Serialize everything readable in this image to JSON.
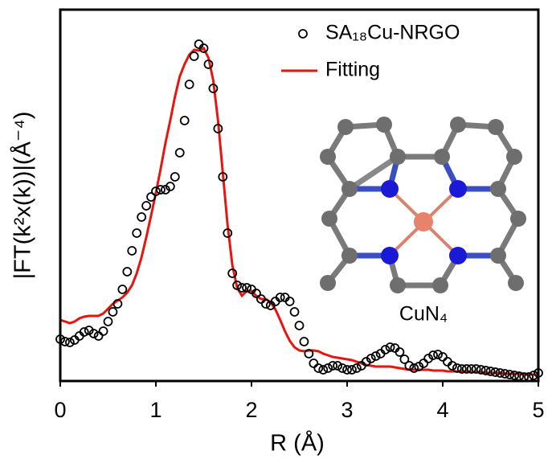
{
  "chart_data": {
    "type": "line",
    "xlabel": "R (Å)",
    "ylabel": "|FT(k²x(k))|(Å⁻⁴)",
    "annotation": "CuN₄",
    "xlim": [
      0,
      5
    ],
    "xticks": [
      0,
      1,
      2,
      3,
      4,
      5
    ],
    "ylim": [
      0,
      462
    ],
    "legend": "upper right",
    "x": [
      0,
      0.05,
      0.1,
      0.15,
      0.2,
      0.25,
      0.3,
      0.35,
      0.4,
      0.45,
      0.5,
      0.55,
      0.6,
      0.65,
      0.7,
      0.75,
      0.8,
      0.85,
      0.9,
      0.95,
      1,
      1.05,
      1.1,
      1.15,
      1.2,
      1.25,
      1.3,
      1.35,
      1.4,
      1.45,
      1.5,
      1.55,
      1.6,
      1.65,
      1.7,
      1.75,
      1.8,
      1.85,
      1.9,
      1.95,
      2,
      2.05,
      2.1,
      2.15,
      2.2,
      2.25,
      2.3,
      2.35,
      2.4,
      2.45,
      2.5,
      2.55,
      2.6,
      2.65,
      2.7,
      2.75,
      2.8,
      2.85,
      2.9,
      2.95,
      3,
      3.05,
      3.1,
      3.15,
      3.2,
      3.25,
      3.3,
      3.35,
      3.4,
      3.45,
      3.5,
      3.55,
      3.6,
      3.65,
      3.7,
      3.75,
      3.8,
      3.85,
      3.9,
      3.95,
      4,
      4.05,
      4.1,
      4.15,
      4.2,
      4.25,
      4.3,
      4.35,
      4.4,
      4.45,
      4.5,
      4.55,
      4.6,
      4.65,
      4.7,
      4.75,
      4.8,
      4.85,
      4.9,
      4.95,
      5
    ],
    "series": [
      {
        "name": "SA₁₈Cu-NRGO",
        "color": "#000000",
        "mode": "markers",
        "values": [
          52,
          49,
          48,
          51,
          56,
          61,
          63,
          59,
          56,
          62,
          74,
          86,
          96,
          114,
          136,
          162,
          184,
          204,
          218,
          229,
          236,
          238,
          238,
          242,
          254,
          284,
          324,
          369,
          404,
          419,
          414,
          394,
          364,
          314,
          254,
          184,
          134,
          119,
          116,
          116,
          114,
          109,
          102,
          96,
          94,
          99,
          104,
          104,
          99,
          86,
          69,
          49,
          34,
          22,
          16,
          14,
          16,
          19,
          19,
          16,
          14,
          14,
          16,
          19,
          24,
          28,
          31,
          34,
          39,
          42,
          41,
          36,
          27,
          19,
          16,
          18,
          22,
          28,
          32,
          33,
          30,
          24,
          19,
          16,
          15,
          15,
          15,
          15,
          14,
          13,
          12,
          11,
          10,
          9,
          8,
          7,
          6,
          5,
          5,
          7,
          10
        ]
      },
      {
        "name": "Fitting",
        "color": "#e8150f",
        "mode": "line",
        "values": [
          76,
          74,
          72,
          74,
          78,
          80,
          81,
          81,
          81,
          84,
          90,
          96,
          100,
          104,
          110,
          119,
          134,
          154,
          179,
          206,
          234,
          264,
          296,
          324,
          354,
          379,
          394,
          406,
          412,
          411,
          414,
          402,
          374,
          324,
          259,
          194,
          144,
          116,
          106,
          112,
          112,
          106,
          102,
          102,
          98,
          89,
          76,
          62,
          50,
          42,
          38,
          37,
          38,
          38,
          37,
          34,
          32,
          30,
          29,
          28,
          27,
          26,
          24,
          22,
          20,
          19,
          18,
          18,
          18,
          18,
          17,
          16,
          15,
          14,
          14,
          14,
          14,
          14,
          13,
          13,
          13,
          12,
          12,
          12,
          12,
          12,
          11,
          11,
          11,
          10,
          10,
          10,
          10,
          9,
          9,
          9,
          9,
          8,
          8,
          8,
          8
        ]
      }
    ]
  }
}
